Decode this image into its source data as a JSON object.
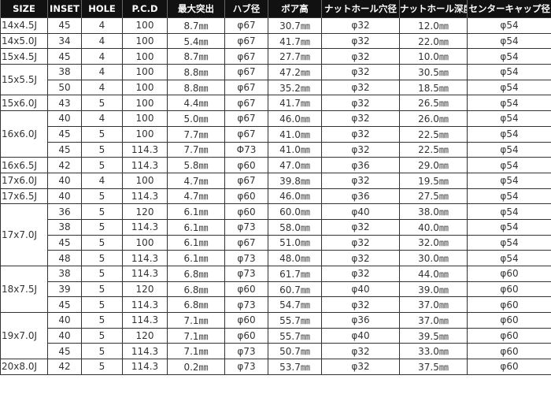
{
  "headers": [
    "SIZE",
    "INSET",
    "HOLE",
    "P.C.D",
    "最大突出",
    "ハブ径",
    "ボア高",
    "ナットホール穴径",
    "ナットホール深度",
    "センターキャップ径"
  ],
  "groups": [
    {
      "size": "14x4.5J",
      "rows": [
        [
          "45",
          "4",
          "100",
          "8.7㎜",
          "φ67",
          "30.7㎜",
          "φ32",
          "12.0㎜",
          "φ54"
        ]
      ]
    },
    {
      "size": "14x5.0J",
      "rows": [
        [
          "34",
          "4",
          "100",
          "5.4㎜",
          "φ67",
          "41.7㎜",
          "φ32",
          "22.0㎜",
          "φ54"
        ]
      ]
    },
    {
      "size": "15x4.5J",
      "rows": [
        [
          "45",
          "4",
          "100",
          "8.7㎜",
          "φ67",
          "27.7㎜",
          "φ32",
          "10.0㎜",
          "φ54"
        ]
      ]
    },
    {
      "size": "15x5.5J",
      "rows": [
        [
          "38",
          "4",
          "100",
          "8.8㎜",
          "φ67",
          "47.2㎜",
          "φ32",
          "30.5㎜",
          "φ54"
        ],
        [
          "50",
          "4",
          "100",
          "8.8㎜",
          "φ67",
          "35.2㎜",
          "φ32",
          "18.5㎜",
          "φ54"
        ]
      ]
    },
    {
      "size": "15x6.0J",
      "rows": [
        [
          "43",
          "5",
          "100",
          "4.4㎜",
          "φ67",
          "41.7㎜",
          "φ32",
          "26.5㎜",
          "φ54"
        ]
      ]
    },
    {
      "size": "16x6.0J",
      "rows": [
        [
          "40",
          "4",
          "100",
          "5.0㎜",
          "φ67",
          "46.0㎜",
          "φ32",
          "26.0㎜",
          "φ54"
        ],
        [
          "45",
          "5",
          "100",
          "7.7㎜",
          "φ67",
          "41.0㎜",
          "φ32",
          "22.5㎜",
          "φ54"
        ],
        [
          "45",
          "5",
          "114.3",
          "7.7㎜",
          "Φ73",
          "41.0㎜",
          "φ32",
          "22.5㎜",
          "φ54"
        ]
      ]
    },
    {
      "size": "16x6.5J",
      "rows": [
        [
          "42",
          "5",
          "114.3",
          "5.8㎜",
          "φ60",
          "47.0㎜",
          "φ36",
          "29.0㎜",
          "φ54"
        ]
      ]
    },
    {
      "size": "17x6.0J",
      "rows": [
        [
          "40",
          "4",
          "100",
          "4.7㎜",
          "φ67",
          "39.8㎜",
          "φ32",
          "19.5㎜",
          "φ54"
        ]
      ]
    },
    {
      "size": "17x6.5J",
      "rows": [
        [
          "40",
          "5",
          "114.3",
          "4.7㎜",
          "φ60",
          "46.0㎜",
          "φ36",
          "27.5㎜",
          "φ54"
        ]
      ]
    },
    {
      "size": "17x7.0J",
      "rows": [
        [
          "36",
          "5",
          "120",
          "6.1㎜",
          "φ60",
          "60.0㎜",
          "φ40",
          "38.0㎜",
          "φ54"
        ],
        [
          "38",
          "5",
          "114.3",
          "6.1㎜",
          "φ73",
          "58.0㎜",
          "φ32",
          "40.0㎜",
          "φ54"
        ],
        [
          "45",
          "5",
          "100",
          "6.1㎜",
          "φ67",
          "51.0㎜",
          "φ32",
          "32.0㎜",
          "φ54"
        ],
        [
          "48",
          "5",
          "114.3",
          "6.1㎜",
          "φ73",
          "48.0㎜",
          "φ32",
          "30.0㎜",
          "φ54"
        ]
      ]
    },
    {
      "size": "18x7.5J",
      "rows": [
        [
          "38",
          "5",
          "114.3",
          "6.8㎜",
          "φ73",
          "61.7㎜",
          "φ32",
          "44.0㎜",
          "φ60"
        ],
        [
          "39",
          "5",
          "120",
          "6.8㎜",
          "φ60",
          "60.7㎜",
          "φ40",
          "39.0㎜",
          "φ60"
        ],
        [
          "45",
          "5",
          "114.3",
          "6.8㎜",
          "φ73",
          "54.7㎜",
          "φ32",
          "37.0㎜",
          "φ60"
        ]
      ]
    },
    {
      "size": "19x7.0J",
      "rows": [
        [
          "40",
          "5",
          "114.3",
          "7.1㎜",
          "φ60",
          "55.7㎜",
          "φ36",
          "37.0㎜",
          "φ60"
        ],
        [
          "40",
          "5",
          "120",
          "7.1㎜",
          "φ60",
          "55.7㎜",
          "φ40",
          "39.5㎜",
          "φ60"
        ],
        [
          "45",
          "5",
          "114.3",
          "7.1㎜",
          "φ73",
          "50.7㎜",
          "φ32",
          "33.0㎜",
          "φ60"
        ]
      ]
    },
    {
      "size": "20x8.0J",
      "rows": [
        [
          "42",
          "5",
          "114.3",
          "0.2㎜",
          "φ73",
          "53.7㎜",
          "φ32",
          "37.5㎜",
          "φ60"
        ]
      ]
    }
  ]
}
